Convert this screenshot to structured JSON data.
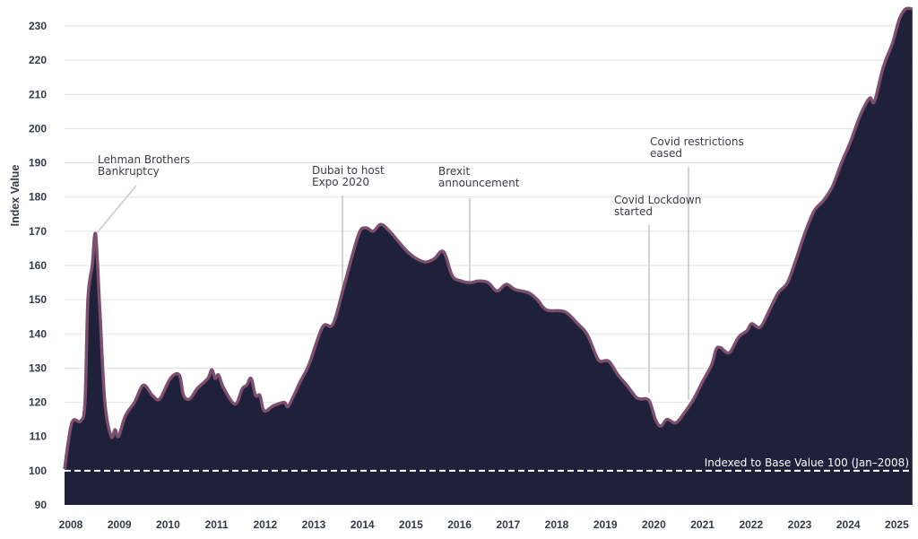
{
  "chart_data": {
    "type": "area",
    "title": "",
    "xlabel": "",
    "ylabel": "Index Value",
    "ylim": [
      90,
      235
    ],
    "xlim": [
      2008.0,
      2025.45
    ],
    "yticks": [
      90,
      100,
      110,
      120,
      130,
      140,
      150,
      160,
      170,
      180,
      190,
      200,
      210,
      220,
      230
    ],
    "xticks": [
      "2008",
      "2009",
      "2010",
      "2011",
      "2012",
      "2013",
      "2014",
      "2015",
      "2016",
      "2017",
      "2018",
      "2019",
      "2020",
      "2021",
      "2022",
      "2023",
      "2024",
      "2025"
    ],
    "grid": true,
    "colors": {
      "fill": "#1f2039",
      "line": "#7d4f6e",
      "grid": "#e3e3e3",
      "annotation_line": "#d2d2d2",
      "baseline": "#ffffff",
      "text": "#333a48"
    },
    "baseline": {
      "value": 100,
      "label": "Indexed to Base Value 100 (Jan–2008)"
    },
    "series": [
      {
        "name": "Index Value",
        "x": [
          2008.0,
          2008.15,
          2008.33,
          2008.42,
          2008.48,
          2008.57,
          2008.64,
          2008.73,
          2008.83,
          2008.96,
          2009.04,
          2009.11,
          2009.25,
          2009.44,
          2009.62,
          2009.81,
          2009.96,
          2010.18,
          2010.36,
          2010.45,
          2010.58,
          2010.73,
          2010.95,
          2011.03,
          2011.1,
          2011.17,
          2011.28,
          2011.51,
          2011.66,
          2011.75,
          2011.84,
          2011.93,
          2012.02,
          2012.11,
          2012.3,
          2012.52,
          2012.61,
          2012.85,
          2013.03,
          2013.31,
          2013.53,
          2013.77,
          2014.05,
          2014.2,
          2014.35,
          2014.51,
          2014.69,
          2014.87,
          2015.06,
          2015.24,
          2015.43,
          2015.61,
          2015.8,
          2015.98,
          2016.16,
          2016.35,
          2016.53,
          2016.72,
          2016.9,
          2017.09,
          2017.27,
          2017.55,
          2017.73,
          2017.92,
          2018.29,
          2018.56,
          2018.75,
          2018.93,
          2019.02,
          2019.2,
          2019.39,
          2019.57,
          2019.76,
          2019.85,
          2020.03,
          2020.16,
          2020.27,
          2020.4,
          2020.58,
          2020.76,
          2020.95,
          2021.13,
          2021.32,
          2021.41,
          2021.5,
          2021.68,
          2021.87,
          2022.05,
          2022.14,
          2022.32,
          2022.51,
          2022.69,
          2022.88,
          2023.06,
          2023.25,
          2023.43,
          2023.62,
          2023.8,
          2023.99,
          2024.17,
          2024.35,
          2024.48,
          2024.58,
          2024.67,
          2024.85,
          2025.04,
          2025.18,
          2025.31,
          2025.45
        ],
        "values": [
          100.5,
          114,
          114.5,
          120,
          150,
          160,
          169,
          146,
          120,
          110,
          112,
          110,
          116,
          120,
          125,
          122,
          121,
          127,
          128,
          122,
          121,
          124,
          127,
          129.5,
          127,
          128,
          124,
          119.5,
          124,
          125,
          127,
          122,
          122,
          117.5,
          119,
          120,
          119,
          126,
          131,
          142,
          143,
          155,
          169,
          171,
          170,
          172,
          170,
          167,
          164,
          162,
          161,
          162,
          164,
          157,
          155.5,
          155,
          155.5,
          155,
          152.5,
          154.5,
          153,
          152,
          150,
          147,
          146.5,
          143,
          140,
          134,
          132,
          132,
          128,
          125,
          121.5,
          121,
          120.5,
          115,
          113,
          115,
          114,
          117,
          121,
          126,
          131,
          135.5,
          136,
          134.5,
          139,
          141,
          143,
          142,
          147,
          152,
          155,
          162,
          170,
          176,
          179,
          183,
          190,
          196,
          203,
          207,
          209,
          208,
          218,
          225,
          232,
          235,
          235
        ]
      }
    ],
    "annotations": [
      {
        "text_lines": [
          "Lehman Brothers",
          "Bankruptcy"
        ],
        "x": 2008.64,
        "value": 169,
        "label_value": 188
      },
      {
        "text_lines": [
          "Dubai to host",
          "Expo 2020"
        ],
        "x": 2013.72,
        "value": 150,
        "label_value": 181
      },
      {
        "text_lines": [
          "Brexit",
          "announcement"
        ],
        "x": 2016.27,
        "value": 155,
        "label_value": 178
      },
      {
        "text_lines": [
          "Covid Lockdown",
          "started"
        ],
        "x": 2019.98,
        "value": 120.5,
        "label_value": 172
      },
      {
        "text_lines": [
          "Covid restrictions",
          "eased"
        ],
        "x": 2020.85,
        "value": 118,
        "label_value": 189
      }
    ]
  }
}
